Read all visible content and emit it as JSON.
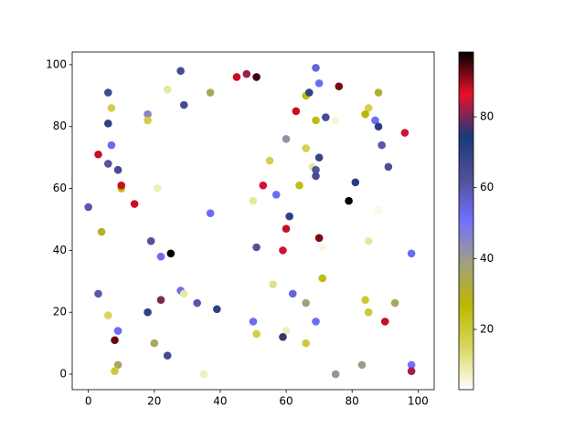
{
  "chart_data": {
    "type": "scatter",
    "x": [
      0,
      3,
      6,
      7,
      6,
      7,
      6,
      9,
      10,
      10,
      14,
      4,
      3,
      6,
      9,
      8,
      9,
      8,
      18,
      18,
      24,
      28,
      29,
      21,
      19,
      22,
      25,
      28,
      29,
      33,
      39,
      22,
      18,
      20,
      24,
      35,
      37,
      37,
      45,
      48,
      51,
      50,
      53,
      55,
      57,
      51,
      50,
      51,
      56,
      60,
      61,
      60,
      59,
      60,
      59,
      63,
      62,
      64,
      66,
      67,
      69,
      69,
      70,
      72,
      66,
      70,
      68,
      69,
      69,
      70,
      71,
      71,
      66,
      69,
      66,
      76,
      75,
      75,
      81,
      79,
      85,
      84,
      87,
      88,
      88,
      89,
      91,
      88,
      85,
      84,
      85,
      83,
      93,
      90,
      96,
      98,
      98,
      98
    ],
    "y": [
      54,
      71,
      91,
      86,
      81,
      74,
      68,
      66,
      60,
      61,
      55,
      46,
      26,
      19,
      14,
      11,
      3,
      1,
      84,
      82,
      92,
      98,
      87,
      60,
      43,
      38,
      39,
      27,
      26,
      23,
      21,
      24,
      20,
      10,
      6,
      0,
      91,
      52,
      96,
      97,
      96,
      56,
      61,
      69,
      58,
      41,
      17,
      13,
      29,
      76,
      51,
      47,
      40,
      14,
      12,
      85,
      26,
      61,
      90,
      91,
      82,
      99,
      94,
      83,
      73,
      70,
      67,
      66,
      64,
      44,
      41,
      31,
      23,
      17,
      10,
      93,
      82,
      0,
      62,
      56,
      86,
      84,
      82,
      91,
      80,
      74,
      67,
      53,
      43,
      24,
      20,
      3,
      23,
      17,
      78,
      39,
      3,
      1
    ],
    "c": [
      60,
      88,
      65,
      18,
      70,
      52,
      62,
      65,
      25,
      88,
      88,
      30,
      60,
      15,
      52,
      93,
      35,
      20,
      45,
      18,
      10,
      65,
      65,
      8,
      62,
      52,
      99,
      52,
      10,
      60,
      70,
      80,
      70,
      35,
      65,
      8,
      35,
      52,
      88,
      82,
      95,
      10,
      85,
      17,
      52,
      62,
      52,
      18,
      12,
      42,
      70,
      88,
      85,
      8,
      77,
      88,
      55,
      25,
      25,
      70,
      25,
      55,
      52,
      65,
      17,
      68,
      10,
      62,
      65,
      92,
      5,
      25,
      38,
      52,
      20,
      92,
      6,
      42,
      72,
      99,
      17,
      27,
      52,
      32,
      72,
      60,
      63,
      5,
      10,
      20,
      20,
      40,
      35,
      88,
      85,
      52,
      50,
      82
    ],
    "colormap": [
      "#ffffff",
      "#d8d660",
      "#bcb800",
      "#a0a080",
      "#7070ff",
      "#505098",
      "#1a3a7a",
      "#e8102a",
      "#000000"
    ],
    "clim": [
      3,
      98.3
    ],
    "colorbar_ticks": [
      20,
      40,
      60,
      80
    ],
    "xlim": [
      -4.9,
      104.9
    ],
    "xticks": [
      0,
      20,
      40,
      60,
      80,
      100
    ],
    "ylim": [
      -5,
      104.1
    ],
    "yticks": [
      0,
      20,
      40,
      60,
      80,
      100
    ]
  }
}
